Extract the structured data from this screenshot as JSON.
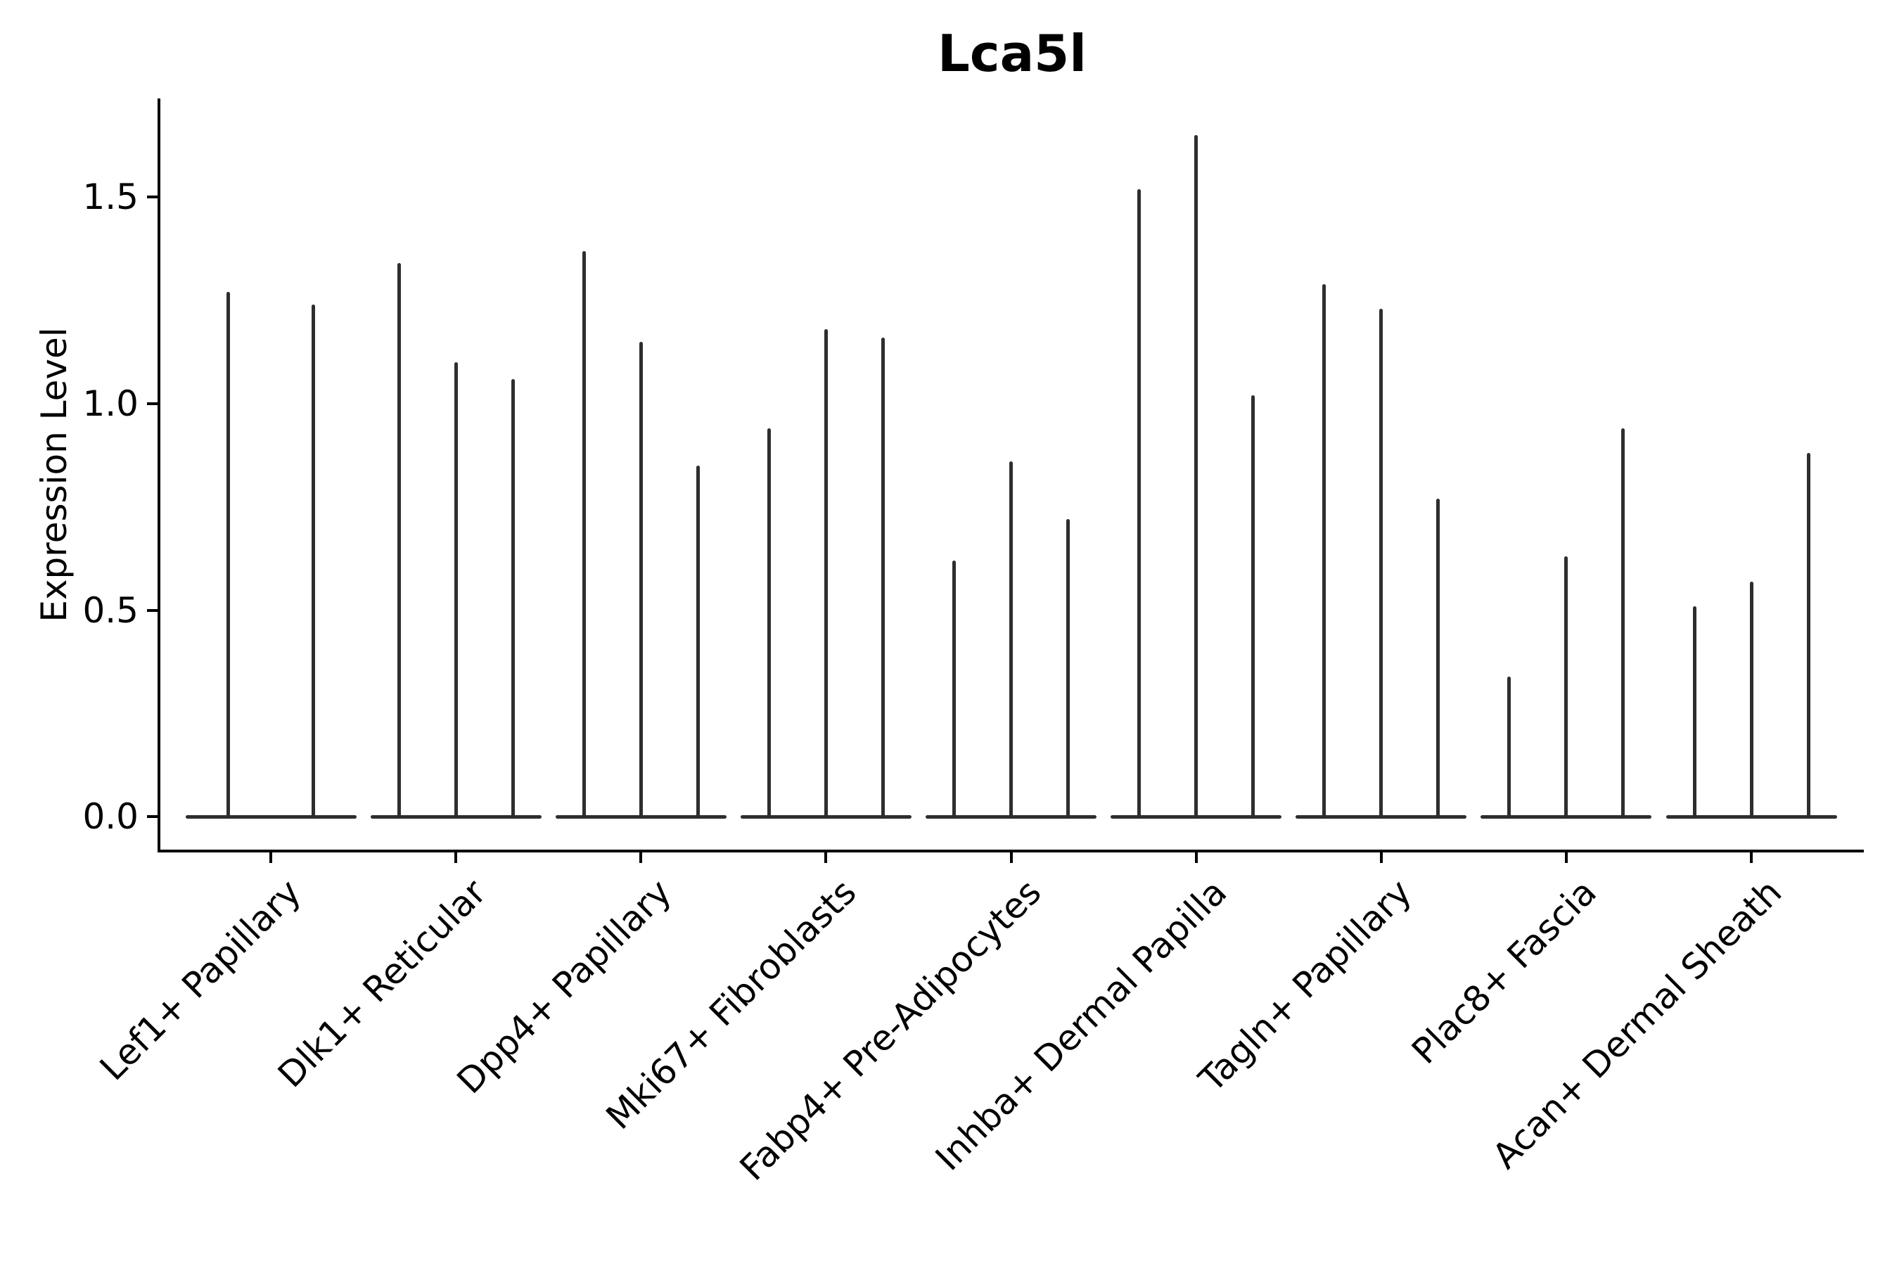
{
  "title": "Lca5l",
  "chart_data": {
    "type": "violin",
    "title": "Lca5l",
    "xlabel": "",
    "ylabel": "Expression Level",
    "categories": [
      "Lef1+ Papillary",
      "Dlk1+ Reticular",
      "Dpp4+ Papillary",
      "Mki67+ Fibroblasts",
      "Fabp4+ Pre-Adipocytes",
      "Inhba+ Dermal Papilla",
      "Tagln+ Papillary",
      "Plac8+ Fascia",
      "Acan+ Dermal Sheath"
    ],
    "series": [
      {
        "category": "Lef1+ Papillary",
        "violin_peaks": [
          1.27,
          1.24
        ]
      },
      {
        "category": "Dlk1+ Reticular",
        "violin_peaks": [
          1.34,
          1.1,
          1.06
        ]
      },
      {
        "category": "Dpp4+ Papillary",
        "violin_peaks": [
          1.37,
          1.15,
          0.85
        ]
      },
      {
        "category": "Mki67+ Fibroblasts",
        "violin_peaks": [
          0.94,
          1.18,
          1.16
        ]
      },
      {
        "category": "Fabp4+ Pre-Adipocytes",
        "violin_peaks": [
          0.62,
          0.86,
          0.72
        ]
      },
      {
        "category": "Inhba+ Dermal Papilla",
        "violin_peaks": [
          1.52,
          1.65,
          1.02
        ]
      },
      {
        "category": "Tagln+ Papillary",
        "violin_peaks": [
          1.29,
          1.23,
          0.77
        ]
      },
      {
        "category": "Plac8+ Fascia",
        "violin_peaks": [
          0.34,
          0.63,
          0.94
        ]
      },
      {
        "category": "Acan+ Dermal Sheath",
        "violin_peaks": [
          0.51,
          0.57,
          0.88
        ]
      }
    ],
    "description": "Violin plot of Lca5l expression; expression is sparse so each violin collapses to a thin spike (max expressing cell) over a flat base at 0.",
    "yticks": [
      0.0,
      0.5,
      1.0,
      1.5
    ],
    "ytick_labels": [
      "0.0",
      "0.5",
      "1.0",
      "1.5"
    ],
    "ylim": [
      -0.083,
      1.739
    ],
    "grid": false,
    "legend": "none",
    "colors": {
      "violin": "#2e2e2e",
      "axis": "#000000",
      "background": "#ffffff"
    }
  }
}
